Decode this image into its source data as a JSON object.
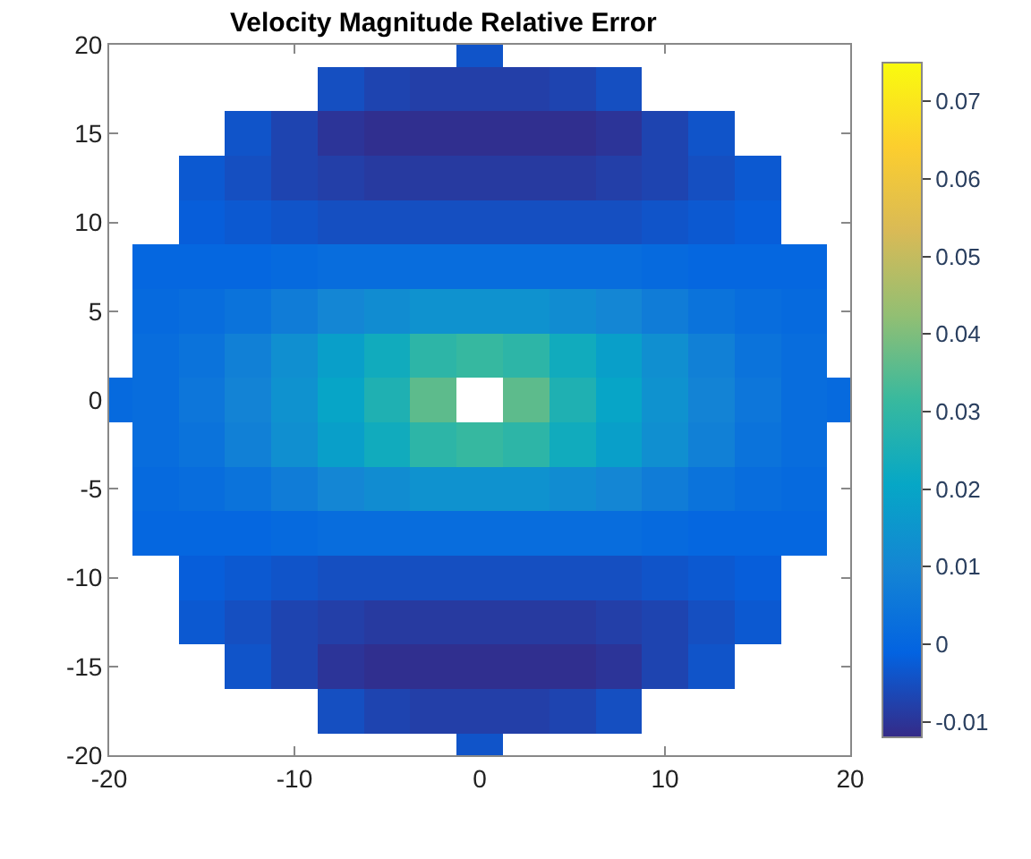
{
  "chart_data": {
    "type": "heatmap",
    "title": "Velocity Magnitude Relative Error",
    "x": [
      -20,
      -17.5,
      -15,
      -12.5,
      -10,
      -7.5,
      -5,
      -2.5,
      0,
      2.5,
      5,
      7.5,
      10,
      12.5,
      15,
      17.5,
      20
    ],
    "y": [
      20,
      17.5,
      15,
      12.5,
      10,
      7.5,
      5,
      2.5,
      0,
      -2.5,
      -5,
      -7.5,
      -10,
      -12.5,
      -15,
      -17.5,
      -20
    ],
    "cells": [
      [
        null,
        null,
        null,
        null,
        null,
        null,
        null,
        null,
        -0.004,
        null,
        null,
        null,
        null,
        null,
        null,
        null,
        null
      ],
      [
        null,
        null,
        null,
        null,
        null,
        -0.005,
        -0.007,
        -0.008,
        -0.008,
        -0.008,
        -0.007,
        -0.005,
        null,
        null,
        null,
        null,
        null
      ],
      [
        null,
        null,
        null,
        -0.004,
        -0.007,
        -0.01,
        -0.011,
        -0.011,
        -0.011,
        -0.011,
        -0.011,
        -0.01,
        -0.007,
        -0.004,
        null,
        null,
        null
      ],
      [
        null,
        null,
        -0.003,
        -0.005,
        -0.007,
        -0.008,
        -0.009,
        -0.009,
        -0.009,
        -0.009,
        -0.009,
        -0.008,
        -0.007,
        -0.005,
        -0.003,
        null,
        null
      ],
      [
        null,
        null,
        -0.002,
        -0.003,
        -0.004,
        -0.005,
        -0.005,
        -0.005,
        -0.005,
        -0.005,
        -0.005,
        -0.005,
        -0.004,
        -0.003,
        -0.002,
        null,
        null
      ],
      [
        null,
        0,
        0,
        0,
        0.001,
        0.002,
        0.002,
        0.002,
        0.002,
        0.002,
        0.002,
        0.002,
        0.001,
        0,
        0,
        0,
        null
      ],
      [
        null,
        0.001,
        0.002,
        0.004,
        0.007,
        0.01,
        0.012,
        0.014,
        0.014,
        0.014,
        0.012,
        0.01,
        0.007,
        0.004,
        0.002,
        0.001,
        null
      ],
      [
        null,
        0.002,
        0.004,
        0.008,
        0.013,
        0.018,
        0.023,
        0.029,
        0.031,
        0.029,
        0.023,
        0.018,
        0.013,
        0.008,
        0.004,
        0.002,
        null
      ],
      [
        0.001,
        0.002,
        0.005,
        0.009,
        0.014,
        0.02,
        0.026,
        0.036,
        null,
        0.036,
        0.026,
        0.02,
        0.014,
        0.009,
        0.005,
        0.002,
        0.001
      ],
      [
        null,
        0.002,
        0.004,
        0.008,
        0.013,
        0.018,
        0.023,
        0.029,
        0.031,
        0.029,
        0.023,
        0.018,
        0.013,
        0.008,
        0.004,
        0.002,
        null
      ],
      [
        null,
        0.001,
        0.002,
        0.004,
        0.007,
        0.01,
        0.012,
        0.014,
        0.014,
        0.014,
        0.012,
        0.01,
        0.007,
        0.004,
        0.002,
        0.001,
        null
      ],
      [
        null,
        0,
        0,
        0,
        0.001,
        0.002,
        0.002,
        0.002,
        0.002,
        0.002,
        0.002,
        0.002,
        0.001,
        0,
        0,
        0,
        null
      ],
      [
        null,
        null,
        -0.002,
        -0.003,
        -0.004,
        -0.005,
        -0.005,
        -0.005,
        -0.005,
        -0.005,
        -0.005,
        -0.005,
        -0.004,
        -0.003,
        -0.002,
        null,
        null
      ],
      [
        null,
        null,
        -0.003,
        -0.005,
        -0.007,
        -0.008,
        -0.009,
        -0.009,
        -0.009,
        -0.009,
        -0.009,
        -0.008,
        -0.007,
        -0.005,
        -0.003,
        null,
        null
      ],
      [
        null,
        null,
        null,
        -0.004,
        -0.007,
        -0.01,
        -0.011,
        -0.011,
        -0.011,
        -0.011,
        -0.011,
        -0.01,
        -0.007,
        -0.004,
        null,
        null,
        null
      ],
      [
        null,
        null,
        null,
        null,
        null,
        -0.005,
        -0.007,
        -0.008,
        -0.008,
        -0.008,
        -0.007,
        -0.005,
        null,
        null,
        null,
        null,
        null
      ],
      [
        null,
        null,
        null,
        null,
        null,
        null,
        null,
        null,
        -0.004,
        null,
        null,
        null,
        null,
        null,
        null,
        null,
        null
      ]
    ],
    "xlim": [
      -20,
      20
    ],
    "ylim": [
      -20,
      20
    ],
    "xticks": [
      -20,
      -10,
      0,
      10,
      20
    ],
    "yticks": [
      -20,
      -15,
      -10,
      -5,
      0,
      5,
      10,
      15,
      20
    ],
    "clim": [
      -0.012,
      0.075
    ],
    "cticks": [
      -0.01,
      0,
      0.01,
      0.02,
      0.03,
      0.04,
      0.05,
      0.06,
      0.07
    ]
  }
}
